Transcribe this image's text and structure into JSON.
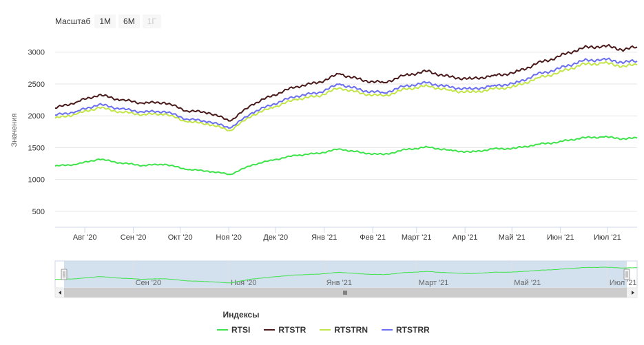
{
  "range_selector": {
    "label": "Масштаб",
    "buttons": [
      {
        "label": "1М",
        "enabled": true
      },
      {
        "label": "6М",
        "enabled": true
      },
      {
        "label": "1Г",
        "enabled": false
      }
    ]
  },
  "legend_title": "Индексы",
  "colors": {
    "RTSI": "#3ee34a",
    "RTSTR": "#4a1a1a",
    "RTSTRN": "#c2e64a",
    "RTSTRR": "#6a6ef0",
    "navigator_fill": "#c8d8ea",
    "grid": "#e6e6e6",
    "axis": "#ccd6eb"
  },
  "chart_data": {
    "type": "line",
    "ylabel": "Значения",
    "ylim": [
      250,
      3300
    ],
    "yticks": [
      500,
      1000,
      1500,
      2000,
      2500,
      3000
    ],
    "x_start": "2020-07-13",
    "x_end": "2021-07-20",
    "xticks": [
      {
        "date": "2020-08-01",
        "label": "Авг '20"
      },
      {
        "date": "2020-09-01",
        "label": "Сен '20"
      },
      {
        "date": "2020-10-01",
        "label": "Окт '20"
      },
      {
        "date": "2020-11-01",
        "label": "Ноя '20"
      },
      {
        "date": "2020-12-01",
        "label": "Дек '20"
      },
      {
        "date": "2021-01-01",
        "label": "Янв '21"
      },
      {
        "date": "2021-02-01",
        "label": "Фев '21"
      },
      {
        "date": "2021-03-01",
        "label": "Март '21"
      },
      {
        "date": "2021-04-01",
        "label": "Апр '21"
      },
      {
        "date": "2021-05-01",
        "label": "Май '21"
      },
      {
        "date": "2021-06-01",
        "label": "Июн '21"
      },
      {
        "date": "2021-07-01",
        "label": "Июл '21"
      }
    ],
    "navigator_xticks": [
      {
        "date": "2020-09-01",
        "label": "Сен '20"
      },
      {
        "date": "2020-11-01",
        "label": "Ноя '20"
      },
      {
        "date": "2021-01-01",
        "label": "Янв '21"
      },
      {
        "date": "2021-03-01",
        "label": "Март '21"
      },
      {
        "date": "2021-05-01",
        "label": "Май '21"
      },
      {
        "date": "2021-07-01",
        "label": "Июл '21"
      }
    ],
    "series": [
      {
        "name": "RTSI",
        "x": [
          "2020-07-13",
          "2020-07-27",
          "2020-08-10",
          "2020-08-24",
          "2020-09-07",
          "2020-09-21",
          "2020-10-05",
          "2020-10-19",
          "2020-11-02",
          "2020-11-16",
          "2020-11-30",
          "2020-12-14",
          "2020-12-28",
          "2021-01-11",
          "2021-01-25",
          "2021-02-08",
          "2021-02-22",
          "2021-03-08",
          "2021-03-22",
          "2021-04-05",
          "2021-04-19",
          "2021-05-03",
          "2021-05-17",
          "2021-05-31",
          "2021-06-14",
          "2021-06-28",
          "2021-07-12",
          "2021-07-20"
        ],
        "values": [
          1210,
          1240,
          1320,
          1260,
          1220,
          1240,
          1160,
          1130,
          1080,
          1230,
          1310,
          1380,
          1410,
          1480,
          1420,
          1390,
          1470,
          1510,
          1460,
          1430,
          1480,
          1490,
          1550,
          1590,
          1650,
          1670,
          1640,
          1650
        ]
      },
      {
        "name": "RTSTR",
        "x": [
          "2020-07-13",
          "2020-07-27",
          "2020-08-10",
          "2020-08-24",
          "2020-09-07",
          "2020-09-21",
          "2020-10-05",
          "2020-10-19",
          "2020-11-02",
          "2020-11-16",
          "2020-11-30",
          "2020-12-14",
          "2020-12-28",
          "2021-01-11",
          "2021-01-25",
          "2021-02-08",
          "2021-02-22",
          "2021-03-08",
          "2021-03-22",
          "2021-04-05",
          "2021-04-19",
          "2021-05-03",
          "2021-05-17",
          "2021-05-31",
          "2021-06-14",
          "2021-06-28",
          "2021-07-12",
          "2021-07-20"
        ],
        "values": [
          2120,
          2220,
          2330,
          2250,
          2200,
          2210,
          2080,
          2050,
          1920,
          2180,
          2330,
          2460,
          2520,
          2660,
          2560,
          2520,
          2640,
          2700,
          2610,
          2580,
          2630,
          2680,
          2820,
          2930,
          3060,
          3100,
          3040,
          3080
        ]
      },
      {
        "name": "RTSTRN",
        "x": [
          "2020-07-13",
          "2020-07-27",
          "2020-08-10",
          "2020-08-24",
          "2020-09-07",
          "2020-09-21",
          "2020-10-05",
          "2020-10-19",
          "2020-11-02",
          "2020-11-16",
          "2020-11-30",
          "2020-12-14",
          "2020-12-28",
          "2021-01-11",
          "2021-01-25",
          "2021-02-08",
          "2021-02-22",
          "2021-03-08",
          "2021-03-22",
          "2021-04-05",
          "2021-04-19",
          "2021-05-03",
          "2021-05-17",
          "2021-05-31",
          "2021-06-14",
          "2021-06-28",
          "2021-07-12",
          "2021-07-20"
        ],
        "values": [
          1960,
          2030,
          2130,
          2060,
          2020,
          2030,
          1910,
          1870,
          1770,
          2010,
          2140,
          2260,
          2310,
          2440,
          2350,
          2310,
          2420,
          2470,
          2400,
          2370,
          2420,
          2460,
          2590,
          2680,
          2800,
          2830,
          2780,
          2800
        ]
      },
      {
        "name": "RTSTRR",
        "x": [
          "2020-07-13",
          "2020-07-27",
          "2020-08-10",
          "2020-08-24",
          "2020-09-07",
          "2020-09-21",
          "2020-10-05",
          "2020-10-19",
          "2020-11-02",
          "2020-11-16",
          "2020-11-30",
          "2020-12-14",
          "2020-12-28",
          "2021-01-11",
          "2021-01-25",
          "2021-02-08",
          "2021-02-22",
          "2021-03-08",
          "2021-03-22",
          "2021-04-05",
          "2021-04-19",
          "2021-05-03",
          "2021-05-17",
          "2021-05-31",
          "2021-06-14",
          "2021-06-28",
          "2021-07-12",
          "2021-07-20"
        ],
        "values": [
          2010,
          2070,
          2180,
          2110,
          2060,
          2070,
          1950,
          1910,
          1810,
          2050,
          2190,
          2310,
          2360,
          2500,
          2400,
          2360,
          2470,
          2520,
          2450,
          2420,
          2470,
          2510,
          2650,
          2740,
          2860,
          2890,
          2840,
          2860
        ]
      }
    ],
    "grid": true,
    "legend_position": "bottom"
  }
}
